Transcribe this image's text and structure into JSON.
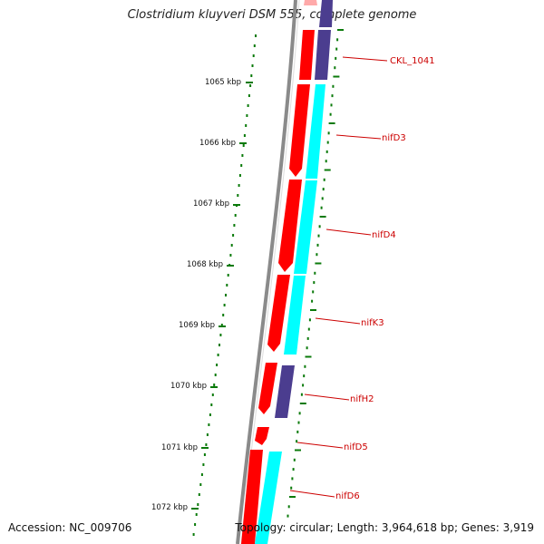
{
  "title": "Clostridium kluyveri DSM 555, complete genome",
  "accession_text": "Accession: NC_009706",
  "topology_text": "Topology: circular; Length: 3,964,618 bp; Genes: 3,919",
  "ticks": [
    "1065 kbp",
    "1066 kbp",
    "1067 kbp",
    "1068 kbp",
    "1069 kbp",
    "1070 kbp",
    "1071 kbp",
    "1072 kbp"
  ],
  "gene_labels": [
    "CKL_1041",
    "nifD3",
    "nifD4",
    "nifK3",
    "nifH2",
    "nifD5",
    "nifD6"
  ],
  "colors": {
    "forward_gene": "#ff0000",
    "forward_gene_light": "#ff9999",
    "nif_cds": "#00ffff",
    "other_cds": "#4b3d8f",
    "backbone": "#777777",
    "ticks": "#0a7a0a",
    "label_line": "#cc0000"
  }
}
